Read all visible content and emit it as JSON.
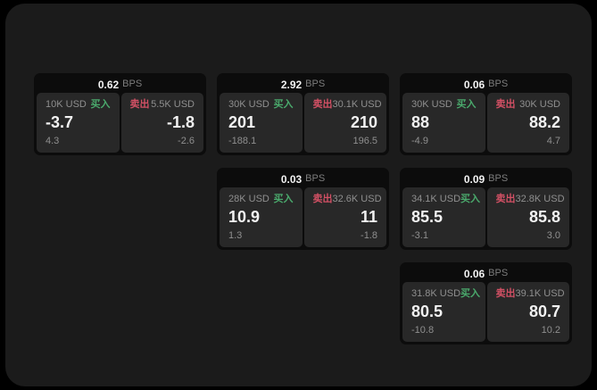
{
  "colors": {
    "background": "#000000",
    "surface": "#1b1b1b",
    "card": "#0c0c0c",
    "panel": "#282828",
    "text_primary": "#f2f2f2",
    "text_secondary": "#8f8f8f",
    "buy_green": "#4aa96c",
    "sell_red": "#d25064"
  },
  "labels": {
    "bps_unit": "BPS",
    "buy": "买入",
    "sell": "卖出"
  },
  "cards": [
    {
      "bps": "0.62",
      "col": 1,
      "row": 1,
      "buy": {
        "size": "10K USD",
        "value": "-3.7",
        "sub": "4.3"
      },
      "sell": {
        "size": "5.5K USD",
        "value": "-1.8",
        "sub": "-2.6"
      }
    },
    {
      "bps": "2.92",
      "col": 2,
      "row": 1,
      "buy": {
        "size": "30K USD",
        "value": "201",
        "sub": "-188.1"
      },
      "sell": {
        "size": "30.1K USD",
        "value": "210",
        "sub": "196.5"
      }
    },
    {
      "bps": "0.06",
      "col": 3,
      "row": 1,
      "buy": {
        "size": "30K USD",
        "value": "88",
        "sub": "-4.9"
      },
      "sell": {
        "size": "30K USD",
        "value": "88.2",
        "sub": "4.7"
      }
    },
    {
      "bps": "0.03",
      "col": 2,
      "row": 2,
      "buy": {
        "size": "28K USD",
        "value": "10.9",
        "sub": "1.3"
      },
      "sell": {
        "size": "32.6K USD",
        "value": "11",
        "sub": "-1.8"
      }
    },
    {
      "bps": "0.09",
      "col": 3,
      "row": 2,
      "buy": {
        "size": "34.1K USD",
        "value": "85.5",
        "sub": "-3.1"
      },
      "sell": {
        "size": "32.8K USD",
        "value": "85.8",
        "sub": "3.0"
      }
    },
    {
      "bps": "0.06",
      "col": 3,
      "row": 3,
      "buy": {
        "size": "31.8K USD",
        "value": "80.5",
        "sub": "-10.8"
      },
      "sell": {
        "size": "39.1K USD",
        "value": "80.7",
        "sub": "10.2"
      }
    }
  ]
}
